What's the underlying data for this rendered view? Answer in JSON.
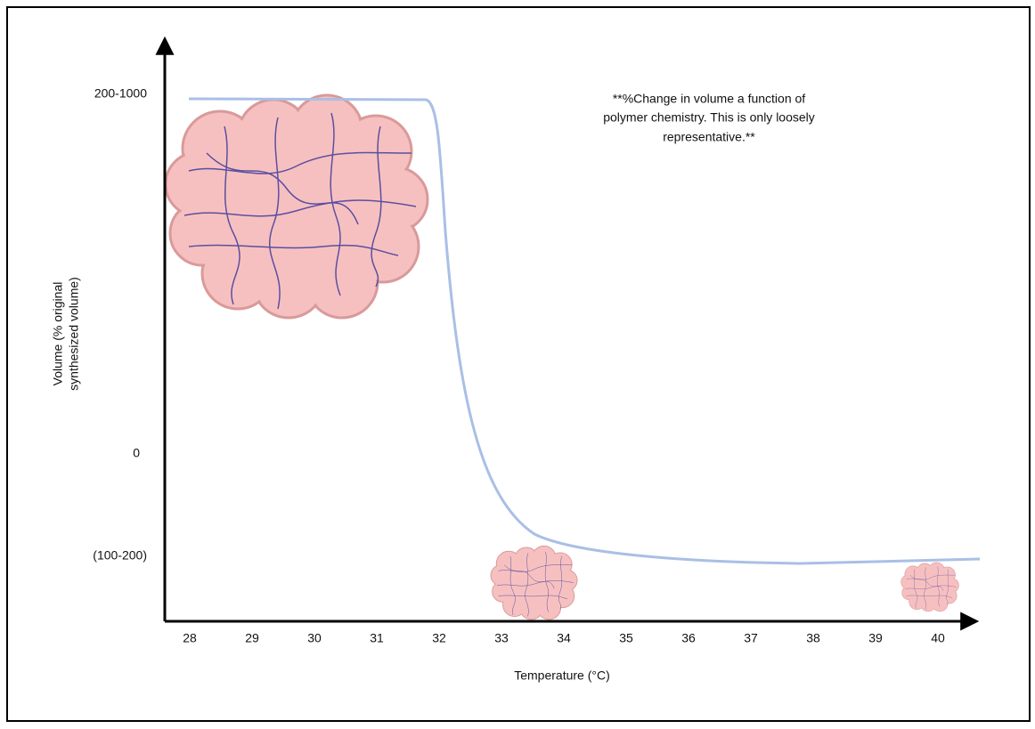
{
  "figure": {
    "y_axis_label": [
      "Volume (% original",
      "synthesized volume)"
    ],
    "y_labels": [
      "200-1000",
      "0",
      "(100-200)"
    ],
    "x_labels": [
      "28",
      "29",
      "30",
      "31",
      "32",
      "33",
      "34",
      "35",
      "36",
      "37",
      "38",
      "39",
      "40"
    ],
    "x_axis_label": "Temperature (°C)",
    "note": [
      "**%Change in volume a function of",
      "polymer chemistry. This is only loosely",
      "representative.**"
    ]
  }
}
